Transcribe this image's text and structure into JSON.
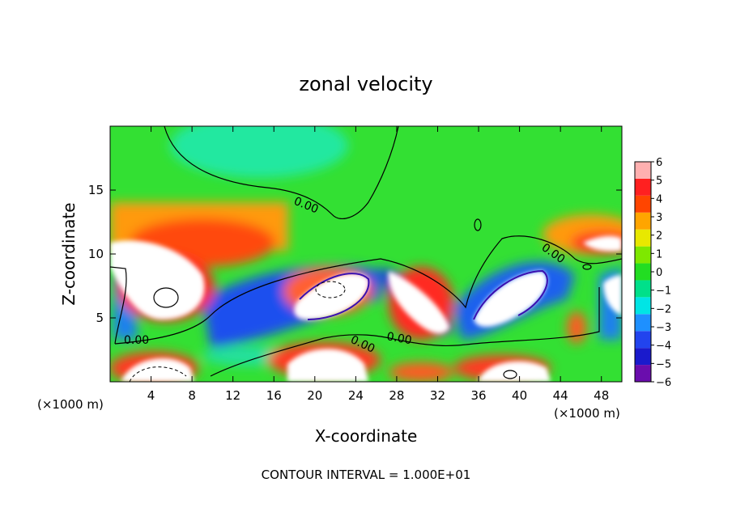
{
  "chart_data": {
    "type": "heatmap",
    "title": "zonal velocity",
    "xlabel": "X-coordinate",
    "ylabel": "Z-coordinate",
    "x_unit_left": "(×1000 m)",
    "x_unit_right": "(×1000 m)",
    "xlim": [
      0,
      50
    ],
    "ylim": [
      0,
      20
    ],
    "x_ticks": [
      4,
      8,
      12,
      16,
      20,
      24,
      28,
      32,
      36,
      40,
      44,
      48
    ],
    "y_ticks": [
      5,
      10,
      15
    ],
    "contour_labels": [
      "0.00",
      "0.00",
      "0.00",
      "0.00",
      "0.00"
    ],
    "colorbar": {
      "ticks": [
        6,
        5,
        4,
        3,
        2,
        1,
        0,
        -1,
        -2,
        -3,
        -4,
        -5,
        -6
      ],
      "min": -6,
      "max": 6,
      "colors": [
        "#6a0dad",
        "#1a1acc",
        "#2244ee",
        "#1e90ff",
        "#00e5e5",
        "#00e08a",
        "#22dd22",
        "#7ee800",
        "#e8e800",
        "#ffa500",
        "#ff4500",
        "#ff2020",
        "#ffb0b0"
      ]
    },
    "grid": false,
    "legend": "right colorbar",
    "footer": "CONTOUR INTERVAL = 1.000E+01"
  }
}
